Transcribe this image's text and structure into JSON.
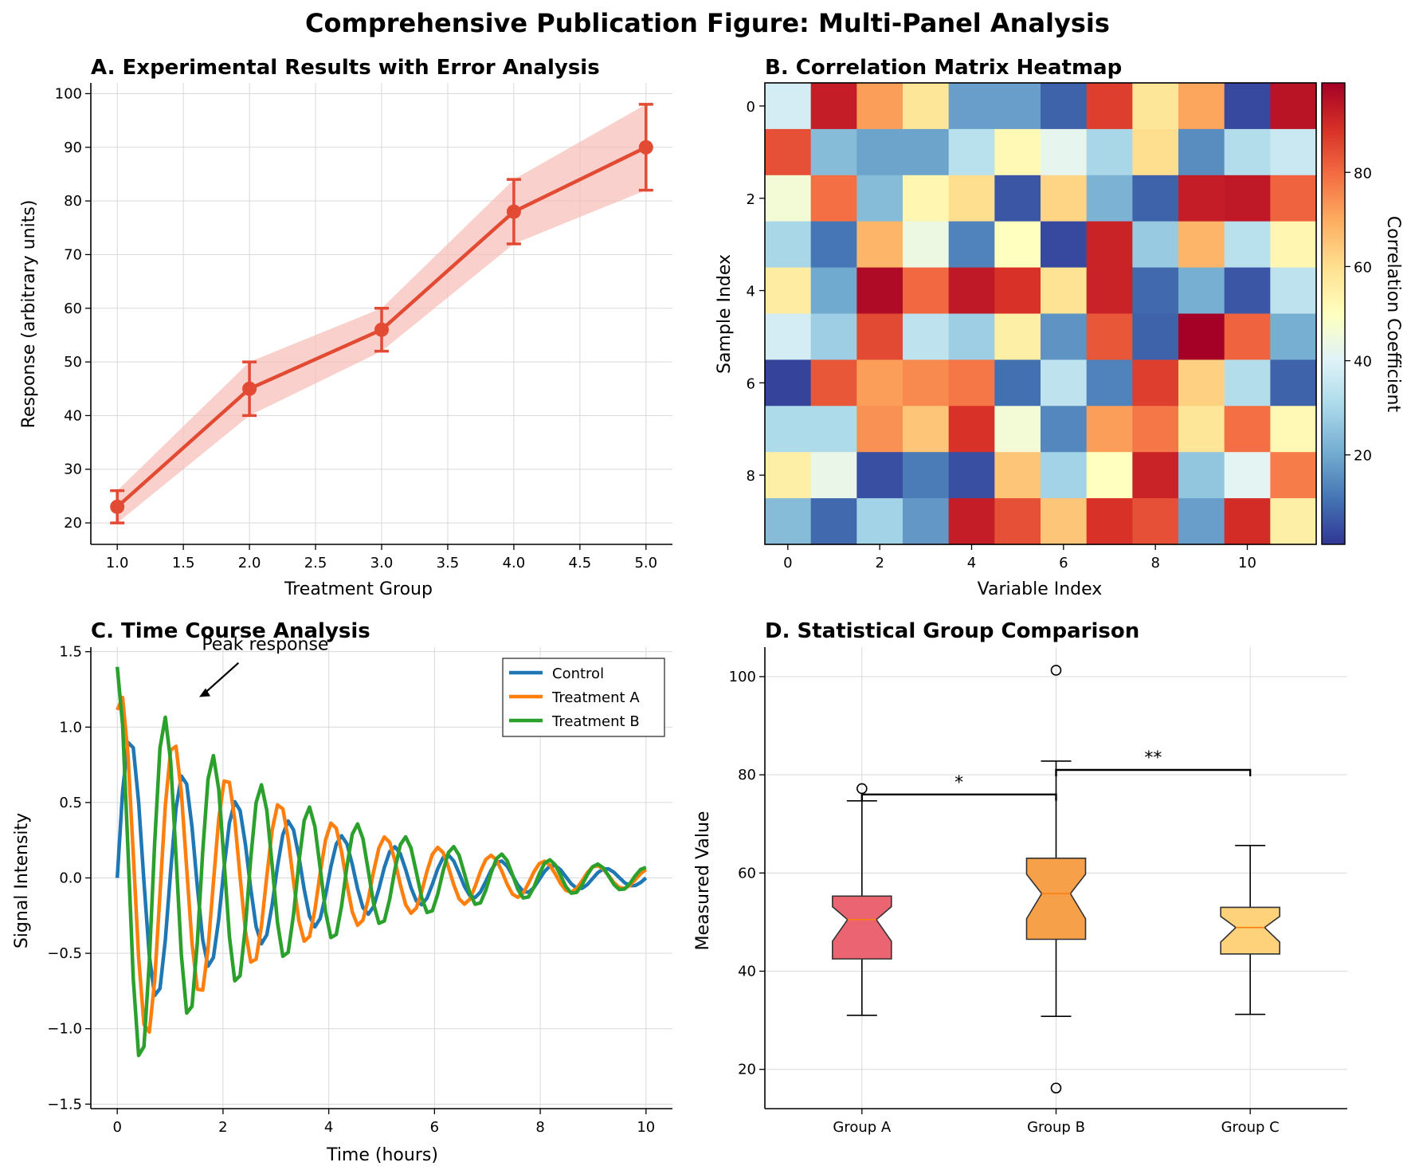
{
  "figure": {
    "title": "Comprehensive Publication Figure: Multi-Panel Analysis",
    "colors": {
      "panel_a_line": "#e34a33",
      "panel_a_band": "#f6bcb5",
      "control": "#1f77b4",
      "treatment_a": "#ff7f0e",
      "treatment_b": "#2ca02c",
      "group_a": "#ea6571",
      "group_b": "#f7a04a",
      "group_c": "#fdd27b"
    }
  },
  "chart_data": [
    {
      "panel": "A",
      "type": "line",
      "title": "A. Experimental Results with Error Analysis",
      "xlabel": "Treatment Group",
      "ylabel": "Response (arbitrary units)",
      "x": [
        1,
        2,
        3,
        4,
        5
      ],
      "y": [
        23,
        45,
        56,
        78,
        90
      ],
      "yerr": [
        3,
        5,
        4,
        6,
        8
      ],
      "xlim": [
        0.8,
        5.2
      ],
      "ylim": [
        16,
        102
      ],
      "xticks": [
        "1.0",
        "1.5",
        "2.0",
        "2.5",
        "3.0",
        "3.5",
        "4.0",
        "4.5",
        "5.0"
      ],
      "yticks": [
        "20",
        "30",
        "40",
        "50",
        "60",
        "70",
        "80",
        "90",
        "100"
      ],
      "grid": true
    },
    {
      "panel": "B",
      "type": "heatmap",
      "title": "B. Correlation Matrix Heatmap",
      "xlabel": "Variable Index",
      "ylabel": "Sample Index",
      "colorbar_label": "Correlation Coefficient",
      "colorbar_range": [
        1,
        99
      ],
      "colorbar_ticks": [
        "20",
        "40",
        "60",
        "80"
      ],
      "xticks": [
        "0",
        "2",
        "4",
        "6",
        "8",
        "10"
      ],
      "yticks": [
        "0",
        "2",
        "4",
        "6",
        "8"
      ],
      "values": [
        [
          38,
          93,
          72,
          58,
          18,
          18,
          8,
          87,
          58,
          71,
          4,
          95
        ],
        [
          84,
          24,
          19,
          19,
          33,
          52,
          42,
          30,
          60,
          15,
          32,
          36
        ],
        [
          46,
          79,
          24,
          53,
          60,
          6,
          62,
          22,
          8,
          93,
          94,
          81
        ],
        [
          30,
          11,
          68,
          44,
          13,
          50,
          4,
          92,
          27,
          68,
          33,
          53
        ],
        [
          56,
          20,
          97,
          80,
          94,
          89,
          59,
          92,
          9,
          21,
          6,
          34
        ],
        [
          38,
          28,
          85,
          34,
          28,
          55,
          16,
          83,
          8,
          99,
          81,
          21
        ],
        [
          3,
          83,
          72,
          75,
          78,
          10,
          34,
          13,
          87,
          63,
          32,
          8
        ],
        [
          31,
          31,
          74,
          65,
          89,
          46,
          14,
          72,
          78,
          58,
          79,
          52
        ],
        [
          55,
          43,
          5,
          12,
          5,
          65,
          29,
          50,
          92,
          26,
          41,
          77
        ],
        [
          24,
          9,
          29,
          17,
          93,
          84,
          65,
          89,
          84,
          18,
          90,
          55
        ]
      ]
    },
    {
      "panel": "C",
      "type": "line",
      "title": "C. Time Course Analysis",
      "xlabel": "Time (hours)",
      "ylabel": "Signal Intensity",
      "xlim": [
        -0.5,
        10.5
      ],
      "ylim": [
        -1.53,
        1.53
      ],
      "xticks": [
        "0",
        "2",
        "4",
        "6",
        "8",
        "10"
      ],
      "yticks": [
        "−1.5",
        "−1.0",
        "−0.5",
        "0.0",
        "0.5",
        "1.0",
        "1.5"
      ],
      "annotation": {
        "text": "Peak response",
        "x_text": 1.75,
        "y_text": 1.5,
        "x_point": 1.55,
        "y_point": 1.2
      },
      "legend_position": "upper right",
      "x_range": [
        0,
        10
      ],
      "num_points": 100,
      "series": [
        {
          "name": "Control",
          "amplitude": 1.0,
          "decay": 0.3,
          "frequency_hz": 1.0,
          "phase": 0
        },
        {
          "name": "Treatment A",
          "amplitude": 1.25,
          "decay": 0.3,
          "frequency_hz": 1.0,
          "phase": 1.1
        },
        {
          "name": "Treatment B",
          "amplitude": 1.4,
          "decay": 0.3,
          "frequency_hz": 1.1,
          "phase": 1.6
        }
      ],
      "grid": true
    },
    {
      "panel": "D",
      "type": "box",
      "title": "D. Statistical Group Comparison",
      "xlabel": "",
      "ylabel": "Measured Value",
      "ylim": [
        12,
        106
      ],
      "yticks": [
        "20",
        "40",
        "60",
        "80",
        "100"
      ],
      "groups": [
        {
          "name": "Group A",
          "q1": 42.5,
          "median": 50.5,
          "q3": 55.3,
          "whisker_low": 31,
          "whisker_high": 74.7,
          "outliers": [
            77.2
          ]
        },
        {
          "name": "Group B",
          "q1": 46.5,
          "median": 55.8,
          "q3": 63,
          "whisker_low": 30.8,
          "whisker_high": 82.8,
          "outliers": [
            101.3,
            16.2
          ]
        },
        {
          "name": "Group C",
          "q1": 43.5,
          "median": 48.9,
          "q3": 53,
          "whisker_low": 31.2,
          "whisker_high": 65.6,
          "outliers": []
        }
      ],
      "significance": [
        {
          "from": 0,
          "to": 1,
          "y": 76,
          "label": "*"
        },
        {
          "from": 1,
          "to": 2,
          "y": 81,
          "label": "**"
        }
      ],
      "grid": true
    }
  ]
}
